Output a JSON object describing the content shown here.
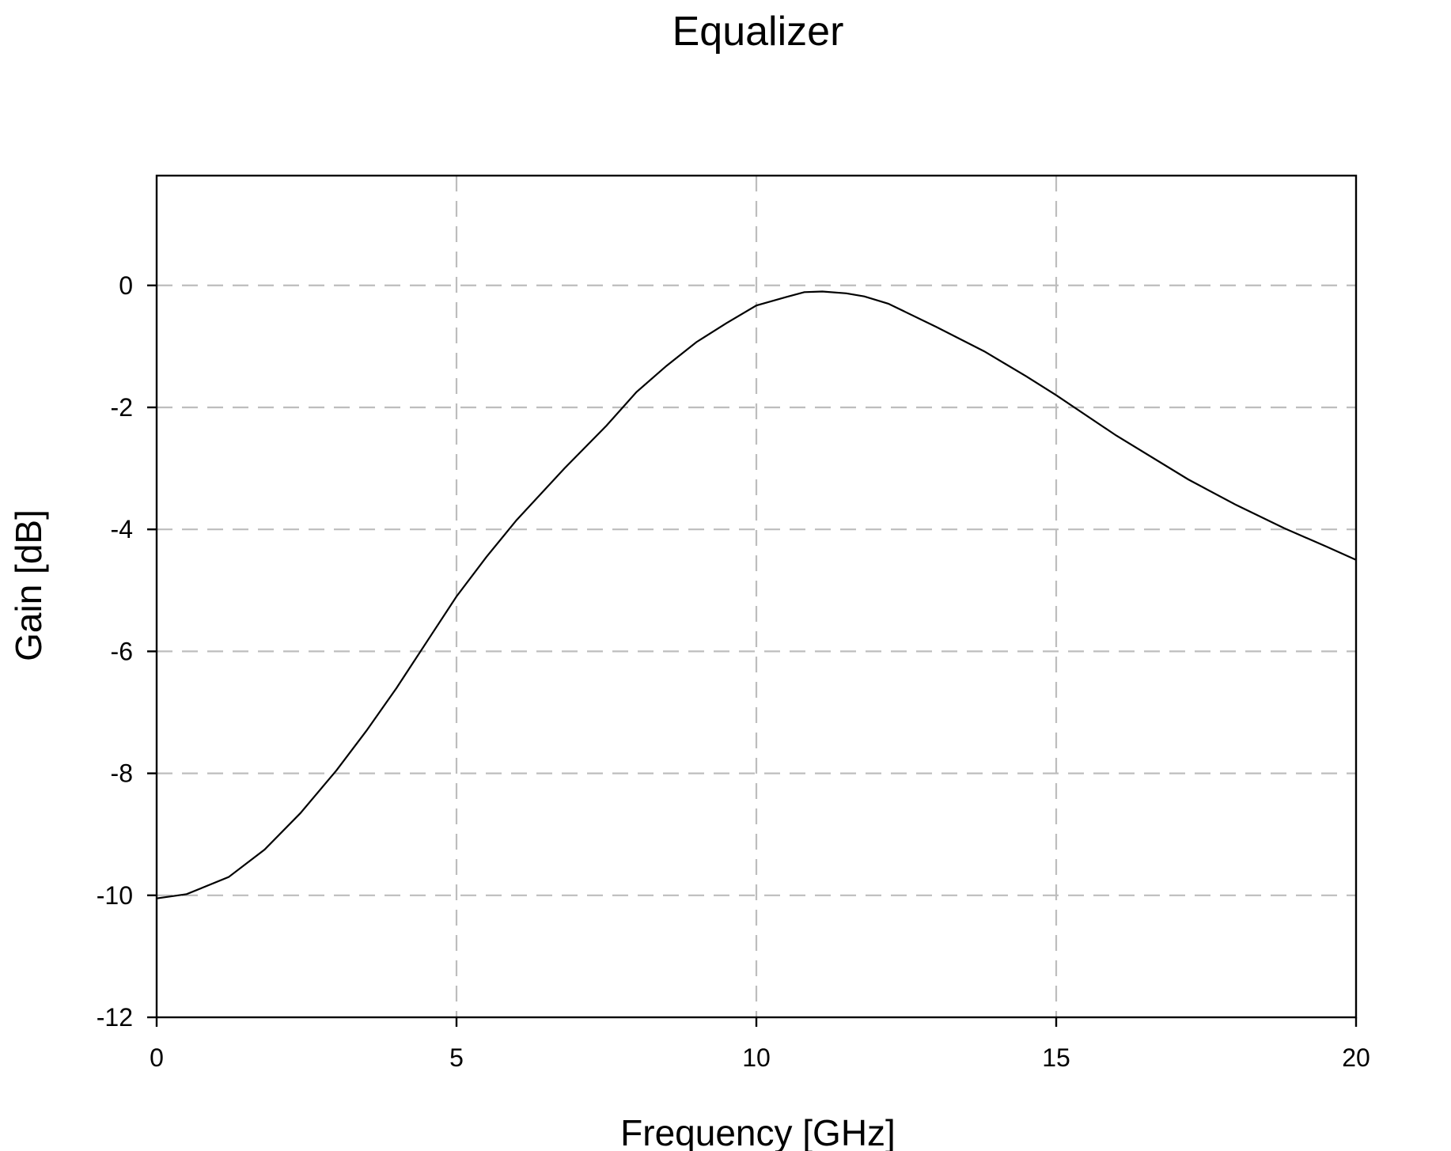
{
  "chart_data": {
    "type": "line",
    "title": "Equalizer",
    "xlabel": "Frequency [GHz]",
    "ylabel": "Gain [dB]",
    "xlim": [
      0,
      20
    ],
    "ylim": [
      -12,
      1.8
    ],
    "x_ticks": [
      0,
      5,
      10,
      15,
      20
    ],
    "y_ticks": [
      -12,
      -10,
      -8,
      -6,
      -4,
      -2,
      0
    ],
    "x_tick_labels": [
      "0",
      "5",
      "10",
      "15",
      "20"
    ],
    "y_tick_labels": [
      "-12",
      "-10",
      "-8",
      "-6",
      "-4",
      "-2",
      "0"
    ],
    "grid": true,
    "series": [
      {
        "color": "#000000",
        "x": [
          0,
          0.5,
          1.2,
          1.8,
          2.4,
          3.0,
          3.5,
          4.0,
          4.5,
          5.0,
          5.5,
          6.0,
          6.8,
          7.5,
          8.0,
          8.5,
          9.0,
          9.5,
          10.0,
          10.5,
          10.8,
          11.1,
          11.5,
          11.8,
          12.2,
          13.0,
          13.8,
          14.5,
          15.0,
          16.0,
          17.2,
          18.0,
          18.8,
          19.5,
          20.0
        ],
        "y": [
          -10.05,
          -9.98,
          -9.7,
          -9.25,
          -8.65,
          -7.95,
          -7.3,
          -6.6,
          -5.85,
          -5.1,
          -4.45,
          -3.85,
          -3.0,
          -2.3,
          -1.75,
          -1.32,
          -0.93,
          -0.62,
          -0.33,
          -0.19,
          -0.11,
          -0.1,
          -0.13,
          -0.18,
          -0.3,
          -0.68,
          -1.08,
          -1.49,
          -1.8,
          -2.46,
          -3.18,
          -3.6,
          -3.98,
          -4.28,
          -4.5
        ]
      }
    ]
  }
}
